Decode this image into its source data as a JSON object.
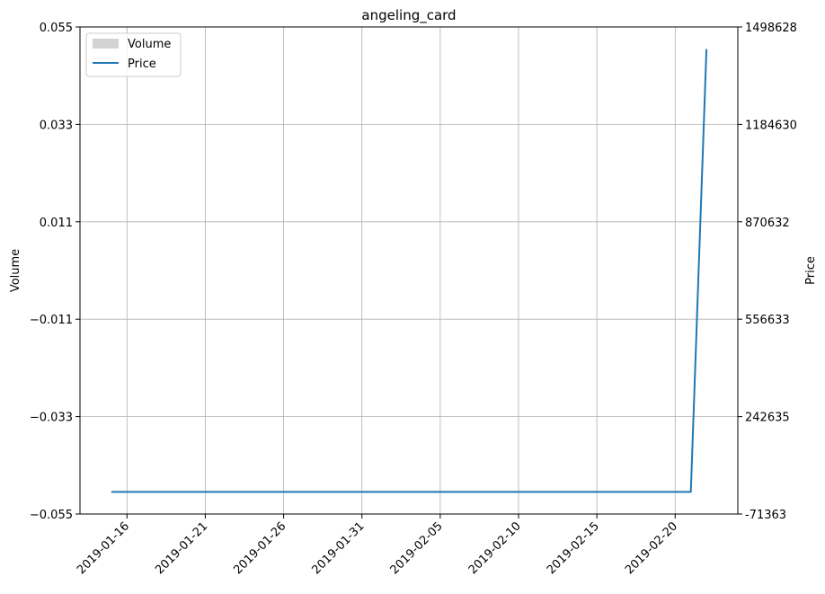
{
  "chart_data": {
    "type": "line",
    "title": "angeling_card",
    "xlabel": "",
    "ylabel_left": "Volume",
    "ylabel_right": "Price",
    "x_ticks": [
      "2019-01-16",
      "2019-01-21",
      "2019-01-26",
      "2019-01-31",
      "2019-02-05",
      "2019-02-10",
      "2019-02-15",
      "2019-02-20"
    ],
    "y_left_ticks": [
      "0.055",
      "0.033",
      "0.011",
      "−0.011",
      "−0.033",
      "−0.055"
    ],
    "y_right_ticks": [
      "1498628",
      "1184630",
      "870632",
      "556633",
      "242635",
      "-71363"
    ],
    "ylim_left": [
      -0.055,
      0.055
    ],
    "ylim_right": [
      -71363,
      1498628
    ],
    "grid": true,
    "legend_position": "top-left",
    "series": [
      {
        "name": "Volume",
        "kind": "bar",
        "color": "#d3d3d3",
        "points": []
      },
      {
        "name": "Price",
        "kind": "line",
        "color": "#1f77b4",
        "points": [
          {
            "x": "2019-01-15",
            "y": 0
          },
          {
            "x": "2019-02-21",
            "y": 0
          },
          {
            "x": "2019-02-22",
            "y": 1427265
          }
        ]
      }
    ]
  }
}
